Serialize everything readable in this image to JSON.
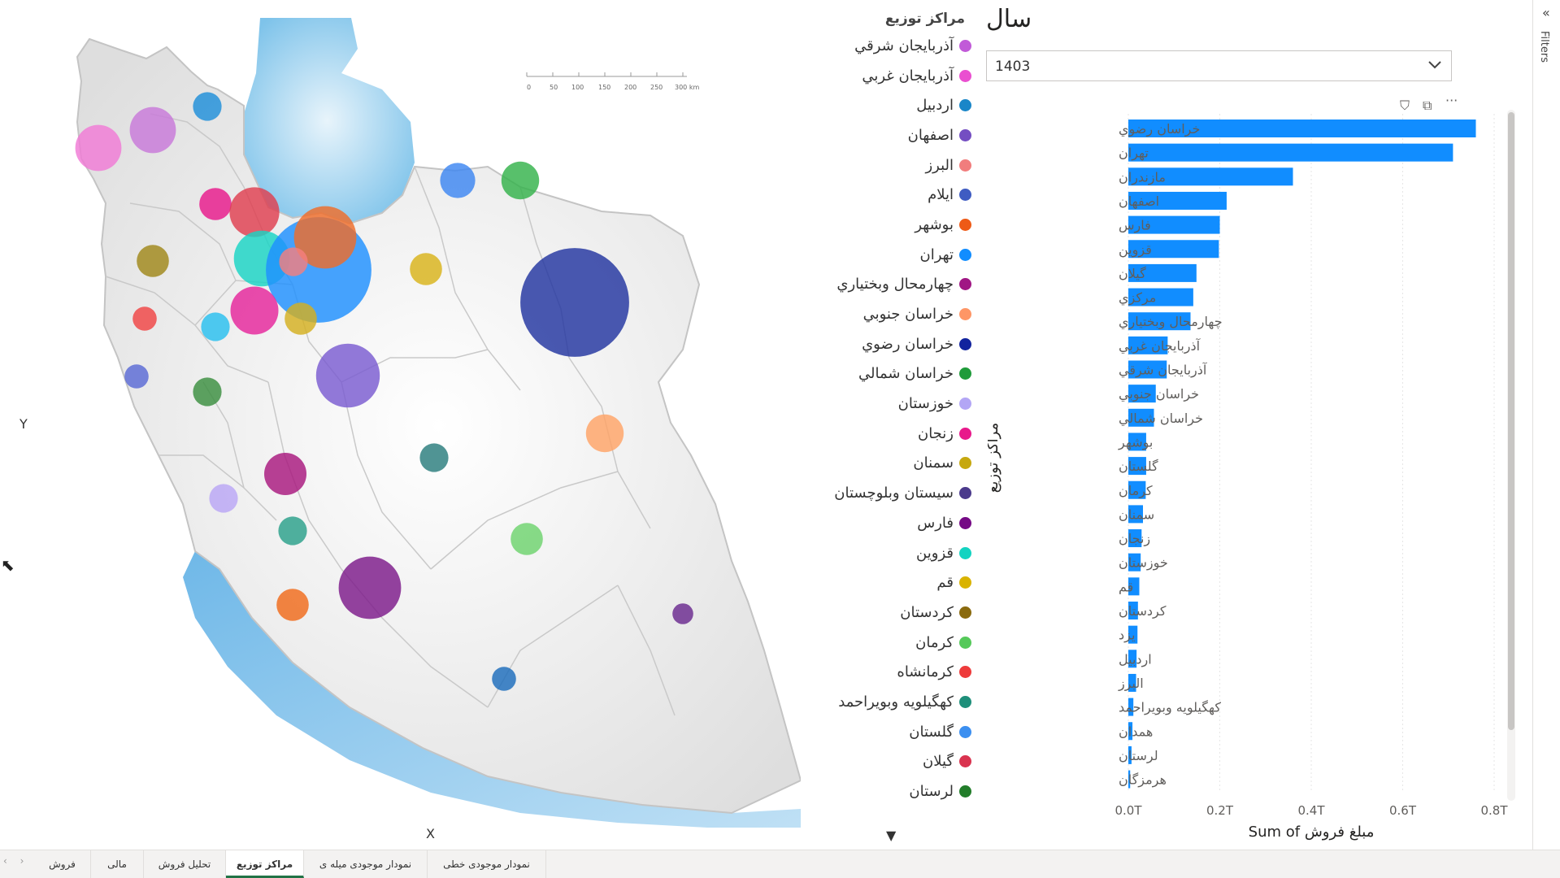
{
  "map": {
    "x_label": "X",
    "y_label": "Y",
    "scale_ticks": [
      "0",
      "50",
      "100",
      "150",
      "200",
      "250",
      "300 km"
    ],
    "bubbles": [
      {
        "color": "#c879d9",
        "value": 0.09
      },
      {
        "color": "#f07ad5",
        "value": 0.09
      },
      {
        "color": "#1e8fd9",
        "value": 0.02
      },
      {
        "color": "#3d86f2",
        "value": 0.04
      },
      {
        "color": "#33b24a",
        "value": 0.05
      },
      {
        "color": "#e8198b",
        "value": 0.03
      },
      {
        "color": "#df3e4f",
        "value": 0.11
      },
      {
        "color": "#19d4c4",
        "value": 0.15
      },
      {
        "color": "#1e90ff",
        "value": 0.7
      },
      {
        "color": "#ef6c2a",
        "value": 0.2
      },
      {
        "color": "#f47f7f",
        "value": 0.02
      },
      {
        "color": "#a0871a",
        "value": 0.03
      },
      {
        "color": "#e5259b",
        "value": 0.1
      },
      {
        "color": "#d9b31a",
        "value": 0.03
      },
      {
        "color": "#28bfef",
        "value": 0.02
      },
      {
        "color": "#f04444",
        "value": 0.01
      },
      {
        "color": "#5a6ad6",
        "value": 0.01
      },
      {
        "color": "#d4b020",
        "value": 0.03
      },
      {
        "color": "#2234a0",
        "value": 0.75
      },
      {
        "color": "#7a5cd1",
        "value": 0.21
      },
      {
        "color": "#3a8f40",
        "value": 0.02
      },
      {
        "color": "#ffa466",
        "value": 0.05
      },
      {
        "color": "#2a7d7d",
        "value": 0.02
      },
      {
        "color": "#a8177e",
        "value": 0.07
      },
      {
        "color": "#b9a6f5",
        "value": 0.02
      },
      {
        "color": "#2aa08a",
        "value": 0.02
      },
      {
        "color": "#6ed36e",
        "value": 0.03
      },
      {
        "color": "#7d1a8a",
        "value": 0.2
      },
      {
        "color": "#f06a1a",
        "value": 0.03
      },
      {
        "color": "#6a2a8f",
        "value": 0.005
      },
      {
        "color": "#1c6cbc",
        "value": 0.01
      }
    ]
  },
  "legend": {
    "title": "مراکز توزیع",
    "more_icon": "▼",
    "items": [
      {
        "label": "آذربايجان شرقي",
        "color": "#c15ad8"
      },
      {
        "label": "آذربايجان غربي",
        "color": "#ea4fd0"
      },
      {
        "label": "اردبيل",
        "color": "#1a86c8"
      },
      {
        "label": "اصفهان",
        "color": "#744ec2"
      },
      {
        "label": "البرز",
        "color": "#f17d7d"
      },
      {
        "label": "ايلام",
        "color": "#3f5cc2"
      },
      {
        "label": "بوشهر",
        "color": "#ee5a16"
      },
      {
        "label": "تهران",
        "color": "#118dff"
      },
      {
        "label": "چهارمحال وبختياري",
        "color": "#a01684"
      },
      {
        "label": "خراسان جنوبي",
        "color": "#fe9666"
      },
      {
        "label": "خراسان رضوي",
        "color": "#12239e"
      },
      {
        "label": "خراسان شمالي",
        "color": "#1f9b3a"
      },
      {
        "label": "خوزستان",
        "color": "#b3a6f5"
      },
      {
        "label": "زنجان",
        "color": "#e8198b"
      },
      {
        "label": "سمنان",
        "color": "#c6a80f"
      },
      {
        "label": "سيستان وبلوچستان",
        "color": "#4b3a8c"
      },
      {
        "label": "فارس",
        "color": "#750985"
      },
      {
        "label": "قزوين",
        "color": "#13d3c1"
      },
      {
        "label": "قم",
        "color": "#d9b300"
      },
      {
        "label": "کردستان",
        "color": "#8a6a0e"
      },
      {
        "label": "کرمان",
        "color": "#55c95a"
      },
      {
        "label": "کرمانشاه",
        "color": "#ee3b3b"
      },
      {
        "label": "کهگيلويه وبويراحمد",
        "color": "#1e8f7a"
      },
      {
        "label": "گلستان",
        "color": "#3c8ff0"
      },
      {
        "label": "گيلان",
        "color": "#d9334f"
      },
      {
        "label": "لرستان",
        "color": "#227d2a"
      }
    ]
  },
  "slicer": {
    "title": "سال",
    "value": "1403",
    "chevron_icon": "chevron-down"
  },
  "header_icons": {
    "filter": "⛉",
    "focus": "⧉",
    "more": "···"
  },
  "chart_data": {
    "type": "bar",
    "orientation": "horizontal",
    "color": "#118dff",
    "xlabel": "Sum of مبلغ فروش",
    "ylabel": "مراکز توزیع",
    "xlim": [
      0,
      0.8
    ],
    "xticks": [
      "0.0T",
      "0.2T",
      "0.4T",
      "0.6T",
      "0.8T"
    ],
    "grid": true,
    "categories": [
      "خراسان رضوي",
      "تهران",
      "مازندران",
      "اصفهان",
      "فارس",
      "قزوين",
      "گيلان",
      "مرکزي",
      "چهارمحال وبختياري",
      "آذربايجان غربي",
      "آذربايجان شرقي",
      "خراسان جنوبي",
      "خراسان شمالي",
      "بوشهر",
      "گلستان",
      "کرمان",
      "سمنان",
      "زنجان",
      "خوزستان",
      "قم",
      "کردستان",
      "يزد",
      "اردبيل",
      "البرز",
      "کهگيلويه وبويراحمد",
      "همدان",
      "لرستان",
      "هرمزگان"
    ],
    "values": [
      0.76,
      0.71,
      0.36,
      0.215,
      0.2,
      0.198,
      0.149,
      0.142,
      0.136,
      0.086,
      0.084,
      0.06,
      0.056,
      0.039,
      0.039,
      0.038,
      0.032,
      0.029,
      0.027,
      0.024,
      0.021,
      0.02,
      0.018,
      0.017,
      0.011,
      0.009,
      0.007,
      0.004
    ]
  },
  "filters_pane": {
    "label": "Filters",
    "collapse_icon": "«"
  },
  "tabs": [
    {
      "label": "فروش",
      "active": false
    },
    {
      "label": "مالی",
      "active": false
    },
    {
      "label": "تحلیل فروش",
      "active": false
    },
    {
      "label": "مراکز توزیع",
      "active": true
    },
    {
      "label": "نمودار موجودی میله ی",
      "active": false
    },
    {
      "label": "نمودار موجودی خطی",
      "active": false
    }
  ]
}
